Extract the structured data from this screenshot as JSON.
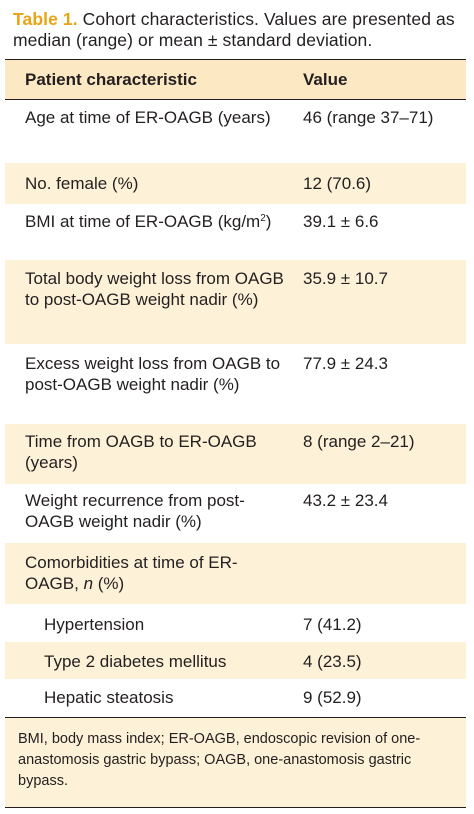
{
  "caption": {
    "label": "Table 1.",
    "text": " Cohort characteristics. Values are presented as median (range) or mean ± standard deviation."
  },
  "table": {
    "headers": [
      "Patient characteristic",
      "Value"
    ],
    "rows": [
      {
        "c1": "Age at time of ER-OAGB (years)",
        "c2": "46 (range 37–71)"
      },
      {
        "c1": "No. female (%)",
        "c2": "12 (70.6)"
      },
      {
        "c1_pre": "BMI at time of ER-OAGB (kg/m",
        "c1_sup": "2",
        "c1_post": ")",
        "c2": "39.1 ± 6.6"
      },
      {
        "c1": "Total body weight loss from OAGB to post-OAGB weight nadir (%)",
        "c2": "35.9 ± 10.7"
      },
      {
        "c1": "Excess weight loss from OAGB to post-OAGB weight nadir (%)",
        "c2": "77.9 ± 24.3"
      },
      {
        "c1": "Time from OAGB to ER-OAGB (years)",
        "c2": "8 (range 2–21)"
      },
      {
        "c1": "Weight recurrence from post-OAGB weight nadir (%)",
        "c2": "43.2 ± 23.4"
      },
      {
        "c1_pre": "Comorbidities at time of ER-OAGB, ",
        "c1_ital": "n",
        "c1_post": " (%)",
        "c2": ""
      },
      {
        "c1": "Hypertension",
        "c2": "7 (41.2)"
      },
      {
        "c1": "Type 2 diabetes mellitus",
        "c2": "4 (23.5)"
      },
      {
        "c1": "Hepatic steatosis",
        "c2": "9 (52.9)"
      }
    ]
  },
  "footnote": "BMI, body mass index; ER-OAGB, endoscopic revision of one-anastomosis gastric bypass; OAGB, one-anastomosis gastric bypass.",
  "colors": {
    "accent": "#e8a317",
    "header_bg": "#fce9c4",
    "alt_bg": "#fdf1d8"
  }
}
